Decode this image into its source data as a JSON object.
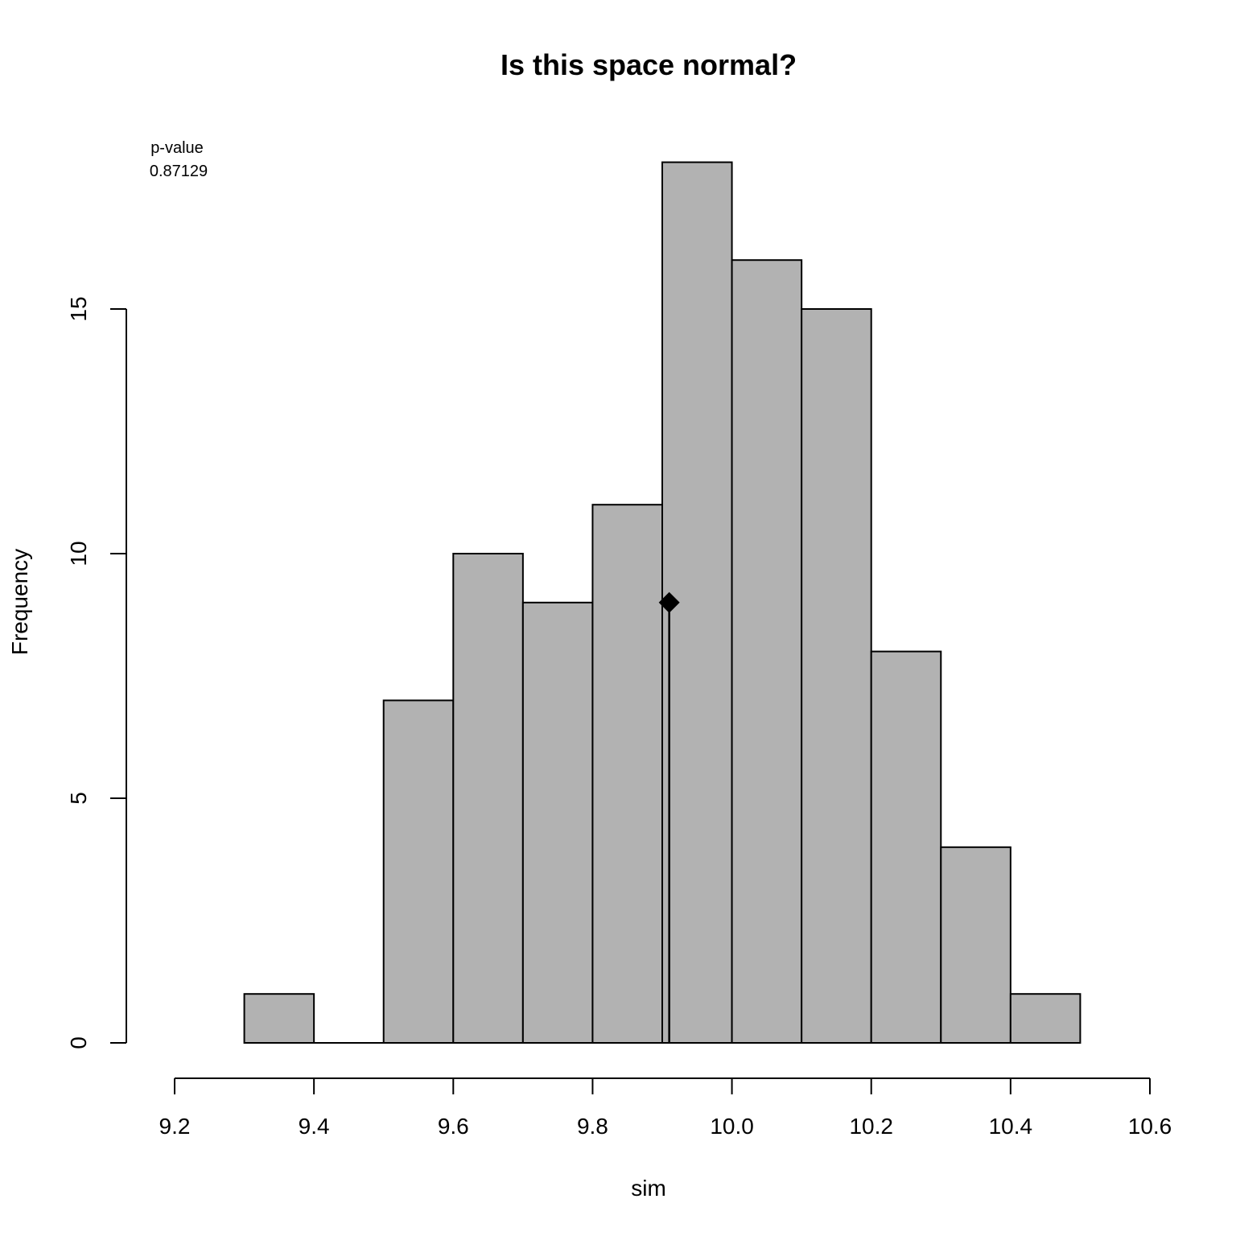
{
  "chart_data": {
    "type": "bar",
    "title": "Is this space normal?",
    "xlabel": "sim",
    "ylabel": "Frequency",
    "bins": [
      {
        "from": 9.3,
        "to": 9.4,
        "count": 1
      },
      {
        "from": 9.4,
        "to": 9.5,
        "count": 0
      },
      {
        "from": 9.5,
        "to": 9.6,
        "count": 7
      },
      {
        "from": 9.6,
        "to": 9.7,
        "count": 10
      },
      {
        "from": 9.7,
        "to": 9.8,
        "count": 9
      },
      {
        "from": 9.8,
        "to": 9.9,
        "count": 11
      },
      {
        "from": 9.9,
        "to": 10.0,
        "count": 18
      },
      {
        "from": 10.0,
        "to": 10.1,
        "count": 16
      },
      {
        "from": 10.1,
        "to": 10.2,
        "count": 15
      },
      {
        "from": 10.2,
        "to": 10.3,
        "count": 8
      },
      {
        "from": 10.3,
        "to": 10.4,
        "count": 4
      },
      {
        "from": 10.4,
        "to": 10.5,
        "count": 1
      }
    ],
    "xlim": [
      9.2,
      10.6
    ],
    "ylim": [
      0,
      18
    ],
    "xticks": [
      "9.2",
      "9.4",
      "9.6",
      "9.8",
      "10.0",
      "10.2",
      "10.4",
      "10.6"
    ],
    "yticks": [
      "0",
      "5",
      "10",
      "15"
    ],
    "observed": {
      "x": 9.91,
      "y": 9
    },
    "bar_color": "#b2b2b2",
    "marker_color": "#000000",
    "grid": false,
    "annotation": {
      "label": "p-value",
      "value": "0.87129"
    }
  }
}
